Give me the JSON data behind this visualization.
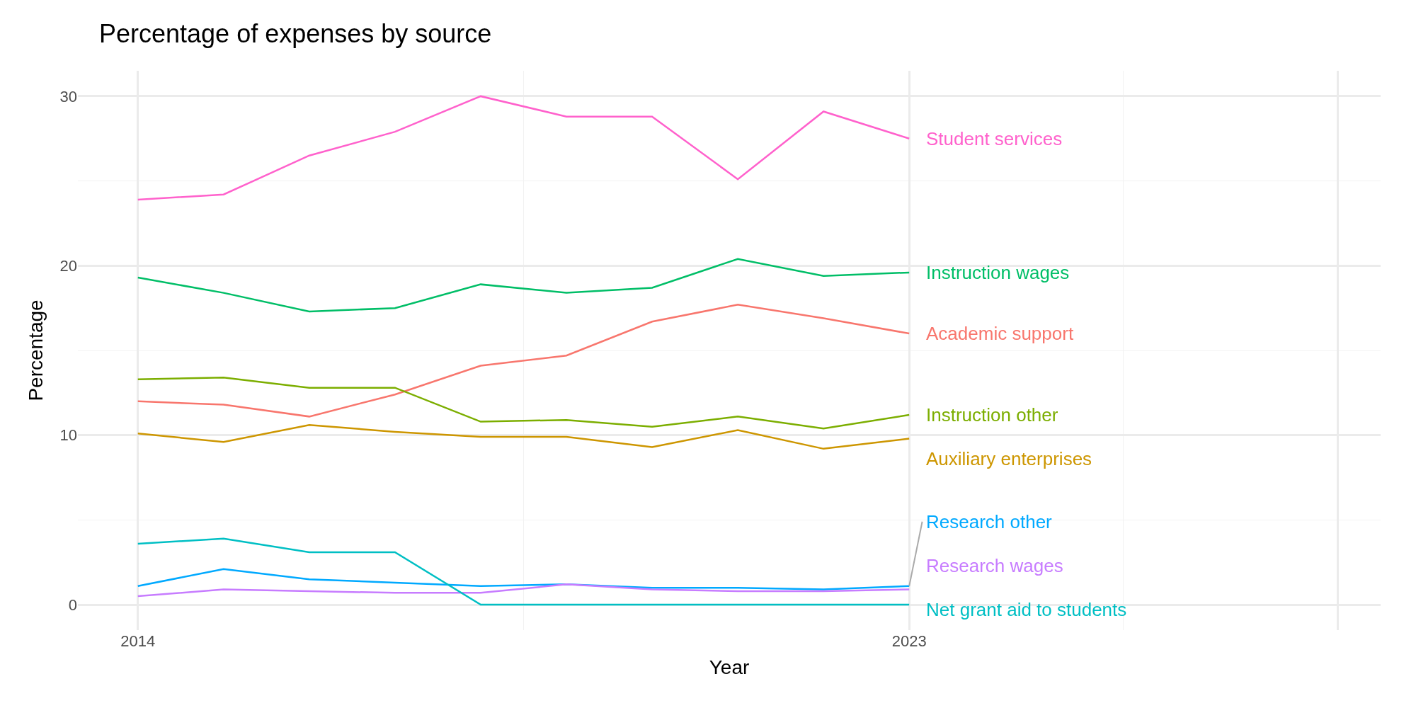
{
  "chart_data": {
    "type": "line",
    "title": "Percentage of expenses by source",
    "xlabel": "Year",
    "ylabel": "Percentage",
    "x": [
      2014,
      2015,
      2016,
      2017,
      2018,
      2019,
      2020,
      2021,
      2022,
      2023
    ],
    "series": [
      {
        "name": "Student services",
        "color": "#ff61cc",
        "values": [
          23.9,
          24.2,
          26.5,
          27.9,
          30.0,
          28.8,
          28.8,
          25.1,
          29.1,
          27.5
        ]
      },
      {
        "name": "Instruction wages",
        "color": "#00be67",
        "values": [
          19.3,
          18.4,
          17.3,
          17.5,
          18.9,
          18.4,
          18.7,
          20.4,
          19.4,
          19.6
        ]
      },
      {
        "name": "Academic support",
        "color": "#f8766d",
        "values": [
          12.0,
          11.8,
          11.1,
          12.4,
          14.1,
          14.7,
          16.7,
          17.7,
          16.9,
          16.0
        ]
      },
      {
        "name": "Instruction other",
        "color": "#7cae00",
        "values": [
          13.3,
          13.4,
          12.8,
          12.8,
          10.8,
          10.9,
          10.5,
          11.1,
          10.4,
          11.2
        ]
      },
      {
        "name": "Auxiliary enterprises",
        "color": "#cd9600",
        "values": [
          10.1,
          9.6,
          10.6,
          10.2,
          9.9,
          9.9,
          9.3,
          10.3,
          9.2,
          9.8
        ]
      },
      {
        "name": "Research other",
        "color": "#00a9ff",
        "values": [
          1.1,
          2.1,
          1.5,
          1.3,
          1.1,
          1.2,
          1.0,
          1.0,
          0.9,
          1.1
        ]
      },
      {
        "name": "Research wages",
        "color": "#c77cff",
        "values": [
          0.5,
          0.9,
          0.8,
          0.7,
          0.7,
          1.2,
          0.9,
          0.8,
          0.8,
          0.9
        ]
      },
      {
        "name": "Net grant aid to students",
        "color": "#00bfc4",
        "values": [
          3.6,
          3.9,
          3.1,
          3.1,
          0,
          0,
          0,
          0,
          0,
          0
        ]
      }
    ],
    "xlim": [
      2013.3,
      2028.5
    ],
    "xticks": [
      2014,
      2023,
      {
        "value": 2028,
        "label": null
      }
    ],
    "ylim": [
      -1.5,
      31.5
    ],
    "yticks": [
      0,
      10,
      20,
      30
    ],
    "grid": true,
    "legend": false
  }
}
